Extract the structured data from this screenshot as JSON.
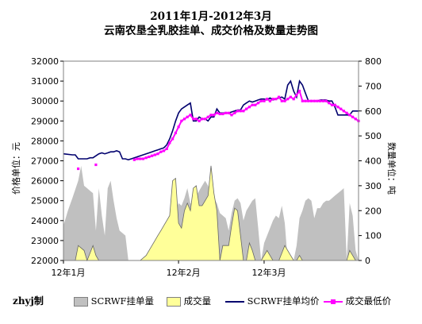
{
  "chart_data": {
    "type": "combo-area-line",
    "title": "2011年1月-2012年3月",
    "subtitle": "云南农垦全乳胶挂单、成交价格及数量走势图",
    "ylabel_left": "价格单位：元",
    "ylabel_right": "数量单位：吨",
    "credit": "zhyj制",
    "ylim_left": [
      22000,
      32000
    ],
    "yticks_left": [
      "32000",
      "31000",
      "30000",
      "29000",
      "28000",
      "27000",
      "26000",
      "25000",
      "24000",
      "23000",
      "22000"
    ],
    "ylim_right": [
      0,
      800
    ],
    "yticks_right": [
      "800",
      "700",
      "600",
      "500",
      "400",
      "300",
      "200",
      "100",
      "0"
    ],
    "xlim": [
      0,
      100
    ],
    "xticks": [
      {
        "x": 0,
        "label": "12年1月"
      },
      {
        "x": 39,
        "label": "12年2月"
      },
      {
        "x": 68,
        "label": "12年3月"
      }
    ],
    "legend_position": "bottom",
    "series": [
      {
        "name": "SCRWF挂单量",
        "kind": "area",
        "axis": "right",
        "color": "#c0c0c0",
        "x": [
          0,
          1.5,
          3,
          5,
          6,
          7,
          8,
          9,
          10,
          11,
          12,
          13,
          14,
          15,
          16,
          17,
          18,
          19,
          20,
          21,
          22,
          23,
          24,
          25,
          26,
          27,
          28,
          29,
          30,
          31,
          32,
          33,
          34,
          35,
          36,
          37,
          38,
          39,
          40,
          41,
          42,
          43,
          44,
          45,
          46,
          47,
          48,
          49,
          50,
          51,
          52,
          53,
          54,
          55,
          56,
          57,
          58,
          59,
          60,
          61,
          62,
          63,
          64,
          65,
          66,
          67,
          68,
          69,
          70,
          71,
          72,
          73,
          74,
          75,
          76,
          77,
          78,
          79,
          80,
          81,
          82,
          83,
          84,
          85,
          86,
          87,
          88,
          89,
          90,
          91,
          92,
          93,
          94,
          95,
          96,
          97,
          98,
          99,
          100
        ],
        "values": [
          140,
          200,
          250,
          320,
          380,
          300,
          290,
          280,
          270,
          120,
          290,
          180,
          100,
          290,
          320,
          240,
          170,
          120,
          110,
          100,
          0,
          0,
          0,
          0,
          0,
          0,
          0,
          0,
          0,
          0,
          0,
          0,
          60,
          120,
          140,
          180,
          200,
          230,
          220,
          250,
          290,
          230,
          220,
          260,
          280,
          300,
          320,
          300,
          270,
          250,
          230,
          190,
          180,
          170,
          120,
          190,
          240,
          250,
          230,
          160,
          200,
          220,
          240,
          250,
          130,
          0,
          70,
          100,
          130,
          160,
          180,
          170,
          220,
          150,
          0,
          0,
          0,
          60,
          170,
          200,
          240,
          250,
          240,
          170,
          210,
          210,
          230,
          240,
          240,
          250,
          260,
          270,
          280,
          290,
          0,
          230,
          180,
          40,
          0
        ]
      },
      {
        "name": "成交量",
        "kind": "area",
        "axis": "right",
        "color": "#ffff99",
        "x": [
          0,
          4,
          5,
          6,
          7,
          8,
          9,
          10,
          11,
          12,
          19,
          20,
          24,
          25,
          26,
          27,
          28,
          29,
          30,
          31,
          32,
          33,
          34,
          35,
          36,
          37,
          38,
          39,
          40,
          41,
          42,
          43,
          44,
          45,
          46,
          47,
          48,
          49,
          50,
          51,
          52,
          53,
          54,
          55,
          56,
          57,
          58,
          59,
          60,
          61,
          62,
          63,
          64,
          65,
          66,
          67,
          68,
          69,
          70,
          71,
          72,
          73,
          74,
          75,
          76,
          77,
          78,
          79,
          80,
          81,
          82,
          83,
          84,
          85,
          86,
          87,
          88,
          89,
          90,
          91,
          92,
          93,
          94,
          95,
          96,
          97,
          98,
          99,
          100
        ],
        "values": [
          0,
          0,
          60,
          50,
          40,
          0,
          30,
          60,
          20,
          0,
          0,
          0,
          0,
          0,
          0,
          10,
          20,
          40,
          60,
          80,
          100,
          120,
          140,
          160,
          180,
          320,
          330,
          150,
          130,
          200,
          230,
          200,
          290,
          300,
          220,
          220,
          240,
          260,
          380,
          270,
          200,
          0,
          60,
          60,
          60,
          140,
          210,
          200,
          100,
          0,
          0,
          70,
          40,
          0,
          0,
          0,
          20,
          40,
          20,
          0,
          0,
          0,
          30,
          60,
          40,
          20,
          0,
          0,
          20,
          0,
          0,
          0,
          0,
          0,
          0,
          0,
          0,
          0,
          0,
          0,
          0,
          0,
          0,
          0,
          0,
          40,
          20,
          0,
          0
        ]
      },
      {
        "name": "SCRWF挂单均价",
        "kind": "line",
        "axis": "left",
        "color": "#00006e",
        "x": [
          0,
          3,
          4,
          5,
          6,
          7,
          8,
          9,
          10,
          11,
          12,
          13,
          14,
          15,
          16,
          17,
          18,
          19,
          20,
          21,
          22,
          23,
          24,
          25,
          26,
          27,
          28,
          29,
          30,
          31,
          32,
          33,
          34,
          35,
          36,
          37,
          38,
          39,
          40,
          41,
          42,
          43,
          44,
          45,
          46,
          47,
          48,
          49,
          50,
          51,
          52,
          53,
          54,
          55,
          56,
          57,
          58,
          59,
          60,
          61,
          62,
          63,
          64,
          65,
          66,
          67,
          68,
          69,
          70,
          71,
          72,
          73,
          74,
          75,
          76,
          77,
          78,
          79,
          80,
          81,
          82,
          83,
          84,
          85,
          86,
          87,
          88,
          89,
          90,
          91,
          92,
          93,
          94,
          95,
          96,
          97,
          98,
          99,
          100
        ],
        "values": [
          27350,
          27300,
          27300,
          27100,
          27100,
          27100,
          27100,
          27150,
          27150,
          27250,
          27350,
          27400,
          27350,
          27400,
          27450,
          27450,
          27500,
          27450,
          27100,
          27100,
          27050,
          27100,
          27150,
          27200,
          27250,
          27300,
          27350,
          27400,
          27450,
          27500,
          27550,
          27600,
          27650,
          27800,
          28100,
          28500,
          29000,
          29400,
          29600,
          29700,
          29800,
          29900,
          29000,
          29000,
          29200,
          29100,
          29100,
          29000,
          29200,
          29200,
          29600,
          29400,
          29400,
          29400,
          29400,
          29450,
          29500,
          29550,
          29550,
          29800,
          29900,
          30000,
          29950,
          30000,
          30050,
          30100,
          30100,
          30050,
          30150,
          30050,
          30100,
          30150,
          30200,
          30100,
          30800,
          31000,
          30500,
          30200,
          31000,
          30800,
          30400,
          30000,
          30000,
          30000,
          30000,
          30050,
          30050,
          30050,
          30000,
          30000,
          29700,
          29300,
          29300,
          29300,
          29300,
          29300,
          29500,
          29500,
          29500
        ]
      },
      {
        "name": "成交最低价",
        "kind": "line-markers",
        "axis": "left",
        "color": "#ff00ff",
        "x": [
          5,
          11,
          24,
          25,
          26,
          27,
          28,
          29,
          30,
          31,
          32,
          33,
          34,
          35,
          36,
          37,
          38,
          39,
          40,
          41,
          42,
          43,
          44,
          45,
          46,
          47,
          48,
          49,
          50,
          51,
          52,
          53,
          54,
          55,
          56,
          57,
          58,
          59,
          60,
          61,
          62,
          63,
          64,
          65,
          66,
          67,
          68,
          69,
          70,
          71,
          72,
          73,
          74,
          75,
          76,
          77,
          78,
          79,
          80,
          81,
          82,
          83,
          84,
          85,
          86,
          87,
          88,
          89,
          90,
          91,
          92,
          93,
          94,
          95,
          96,
          97,
          98,
          99,
          100
        ],
        "values": [
          26600,
          26800,
          27050,
          27100,
          27100,
          27100,
          27150,
          27200,
          27250,
          27300,
          27350,
          27450,
          27500,
          27600,
          27900,
          28100,
          28400,
          28700,
          29000,
          29100,
          29200,
          29300,
          29100,
          29100,
          29000,
          29100,
          29100,
          29200,
          29300,
          29300,
          29400,
          29350,
          29350,
          29400,
          29400,
          29300,
          29400,
          29500,
          29500,
          29500,
          29600,
          29700,
          29800,
          29800,
          29900,
          30000,
          30000,
          30100,
          30000,
          30100,
          30100,
          30200,
          30000,
          30000,
          30100,
          30200,
          30100,
          30300,
          30500,
          30000,
          30000,
          30000,
          30000,
          30000,
          30000,
          30000,
          30000,
          30000,
          29900,
          29800,
          29800,
          29700,
          29600,
          29500,
          29400,
          29300,
          29200,
          29100,
          29000
        ]
      }
    ]
  }
}
